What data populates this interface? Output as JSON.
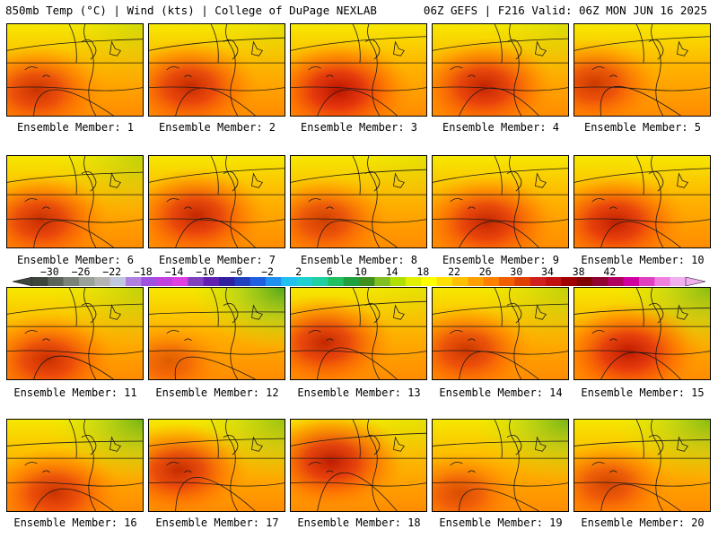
{
  "header": {
    "left": "850mb Temp (°C) | Wind (kts) | College of DuPage NEXLAB",
    "right": "06Z GEFS | F216 Valid: 06Z MON JUN 16 2025"
  },
  "panels": [
    {
      "label": "Ensemble Member: 1",
      "warmth": 0.62,
      "hot_x": 0.22,
      "hot_y": 0.72,
      "green": 0.1
    },
    {
      "label": "Ensemble Member: 2",
      "warmth": 0.68,
      "hot_x": 0.3,
      "hot_y": 0.68,
      "green": 0.05
    },
    {
      "label": "Ensemble Member: 3",
      "warmth": 0.82,
      "hot_x": 0.35,
      "hot_y": 0.72,
      "green": 0.0
    },
    {
      "label": "Ensemble Member: 4",
      "warmth": 0.72,
      "hot_x": 0.38,
      "hot_y": 0.68,
      "green": 0.08
    },
    {
      "label": "Ensemble Member: 5",
      "warmth": 0.58,
      "hot_x": 0.15,
      "hot_y": 0.65,
      "green": 0.0
    },
    {
      "label": "Ensemble Member: 6",
      "warmth": 0.66,
      "hot_x": 0.25,
      "hot_y": 0.7,
      "green": 0.15
    },
    {
      "label": "Ensemble Member: 7",
      "warmth": 0.7,
      "hot_x": 0.35,
      "hot_y": 0.65,
      "green": 0.0
    },
    {
      "label": "Ensemble Member: 8",
      "warmth": 0.55,
      "hot_x": 0.25,
      "hot_y": 0.7,
      "green": 0.05
    },
    {
      "label": "Ensemble Member: 9",
      "warmth": 0.7,
      "hot_x": 0.4,
      "hot_y": 0.72,
      "green": 0.0
    },
    {
      "label": "Ensemble Member: 10",
      "warmth": 0.74,
      "hot_x": 0.3,
      "hot_y": 0.72,
      "green": 0.0
    },
    {
      "label": "Ensemble Member: 11",
      "warmth": 0.64,
      "hot_x": 0.3,
      "hot_y": 0.78,
      "green": 0.15
    },
    {
      "label": "Ensemble Member: 12",
      "warmth": 0.32,
      "hot_x": 0.15,
      "hot_y": 0.8,
      "green": 0.45
    },
    {
      "label": "Ensemble Member: 13",
      "warmth": 0.7,
      "hot_x": 0.25,
      "hot_y": 0.6,
      "green": 0.05
    },
    {
      "label": "Ensemble Member: 14",
      "warmth": 0.6,
      "hot_x": 0.25,
      "hot_y": 0.68,
      "green": 0.15
    },
    {
      "label": "Ensemble Member: 15",
      "warmth": 0.78,
      "hot_x": 0.4,
      "hot_y": 0.7,
      "green": 0.3
    },
    {
      "label": "Ensemble Member: 16",
      "warmth": 0.6,
      "hot_x": 0.35,
      "hot_y": 0.8,
      "green": 0.35
    },
    {
      "label": "Ensemble Member: 17",
      "warmth": 0.68,
      "hot_x": 0.22,
      "hot_y": 0.55,
      "green": 0.25
    },
    {
      "label": "Ensemble Member: 18",
      "warmth": 0.78,
      "hot_x": 0.3,
      "hot_y": 0.45,
      "green": 0.05
    },
    {
      "label": "Ensemble Member: 19",
      "warmth": 0.42,
      "hot_x": 0.2,
      "hot_y": 0.8,
      "green": 0.35
    },
    {
      "label": "Ensemble Member: 20",
      "warmth": 0.5,
      "hot_x": 0.25,
      "hot_y": 0.7,
      "green": 0.3
    }
  ],
  "colorbar": {
    "labels": [
      "−30",
      "−26",
      "−22",
      "−18",
      "−14",
      "−10",
      "−6",
      "−2",
      "2",
      "6",
      "10",
      "14",
      "18",
      "22",
      "26",
      "30",
      "34",
      "38",
      "42"
    ],
    "colors": [
      "#3c463c",
      "#5a645a",
      "#7a827a",
      "#9aa09a",
      "#b4b4b4",
      "#c0c8e0",
      "#b080e0",
      "#a050e0",
      "#c040e0",
      "#e040e0",
      "#8040c0",
      "#6020b0",
      "#3020a0",
      "#2040c0",
      "#2060e0",
      "#2090f0",
      "#20c0f0",
      "#20d0d0",
      "#20d0a0",
      "#20c060",
      "#20a040",
      "#409020",
      "#80c020",
      "#b0e000",
      "#e0f000",
      "#ffff00",
      "#ffe000",
      "#ffc000",
      "#ffa000",
      "#ff8000",
      "#f06000",
      "#e04000",
      "#d02020",
      "#c01010",
      "#a00000",
      "#800000",
      "#900030",
      "#b00060",
      "#d000a0",
      "#e040c0",
      "#f080e0",
      "#f0b0f0"
    ]
  }
}
